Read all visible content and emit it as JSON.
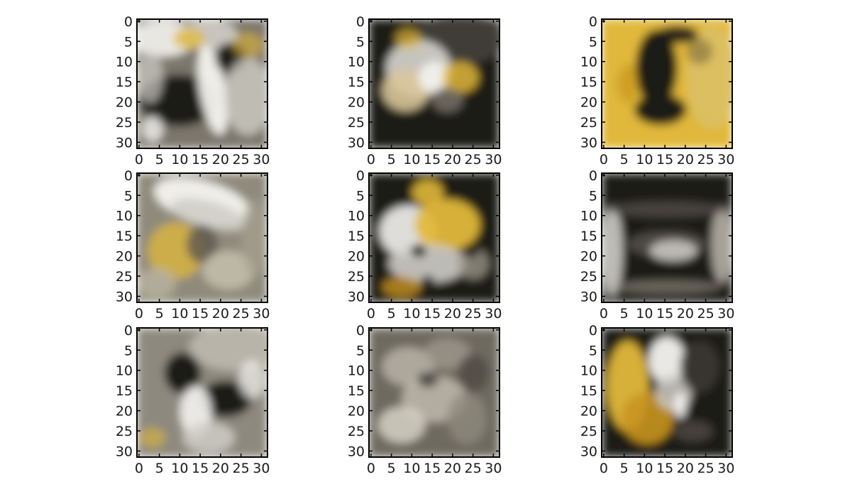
{
  "chart_data": {
    "type": "heatmap",
    "layout": {
      "rows": 3,
      "cols": 3
    },
    "shared_axes": {
      "x_ticks": [
        0,
        5,
        10,
        15,
        20,
        25,
        30
      ],
      "y_ticks": [
        0,
        5,
        10,
        15,
        20,
        25,
        30
      ],
      "xlim": [
        -0.5,
        31.5
      ],
      "ylim": [
        31.5,
        -0.5
      ],
      "image_size": [
        32,
        32
      ],
      "grid": false
    },
    "colors": {
      "dark": "#1c1a17",
      "mid_gray": "#7b776c",
      "light_gray": "#cfcdc6",
      "white": "#f4f3ef",
      "gold": "#e0b83a",
      "deep_gold": "#c9951f"
    },
    "panels": [
      {
        "id": "r1c1",
        "content": "mixed-gray-white-yellow"
      },
      {
        "id": "r1c2",
        "content": "light-figure-on-dark"
      },
      {
        "id": "r1c3",
        "content": "dark-shape-on-gold"
      },
      {
        "id": "r2c1",
        "content": "white-hat-figure"
      },
      {
        "id": "r2c2",
        "content": "gold-white-figure-on-dark"
      },
      {
        "id": "r2c3",
        "content": "dark-box-with-light-frame"
      },
      {
        "id": "r3c1",
        "content": "gray-with-dark-blobs"
      },
      {
        "id": "r3c2",
        "content": "gray-texture"
      },
      {
        "id": "r3c3",
        "content": "gold-white-figure-on-dark"
      }
    ]
  }
}
